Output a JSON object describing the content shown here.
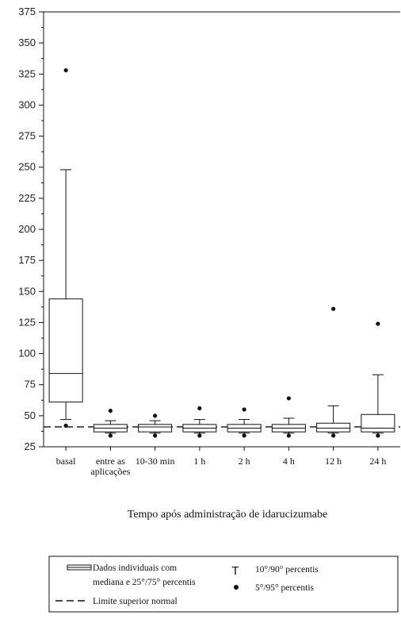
{
  "chart_data": {
    "type": "box",
    "xlabel": "Tempo após administração de idarucizumabe",
    "ylim": [
      25,
      375
    ],
    "yticks": [
      25,
      50,
      75,
      100,
      125,
      150,
      175,
      200,
      225,
      250,
      275,
      300,
      325,
      350,
      375
    ],
    "categories": [
      [
        "basal"
      ],
      [
        "entre as",
        "aplicações"
      ],
      [
        "10-30 min"
      ],
      [
        "1 h"
      ],
      [
        "2 h"
      ],
      [
        "4 h"
      ],
      [
        "12 h"
      ],
      [
        "24 h"
      ]
    ],
    "boxes": [
      {
        "p5": 42,
        "p10": 47,
        "q1": 61,
        "median": 84,
        "q3": 144,
        "p90": 248,
        "p95": 328
      },
      {
        "p5": 34,
        "p10": 36,
        "q1": 37,
        "median": 40,
        "q3": 43,
        "p90": 46,
        "p95": 54
      },
      {
        "p5": 34,
        "p10": 36,
        "q1": 37,
        "median": 41,
        "q3": 43,
        "p90": 46,
        "p95": 50
      },
      {
        "p5": 34,
        "p10": 36,
        "q1": 37,
        "median": 40,
        "q3": 43,
        "p90": 47,
        "p95": 56
      },
      {
        "p5": 34,
        "p10": 36,
        "q1": 37,
        "median": 40,
        "q3": 43,
        "p90": 47,
        "p95": 55
      },
      {
        "p5": 34,
        "p10": 36,
        "q1": 37,
        "median": 40,
        "q3": 43,
        "p90": 48,
        "p95": 64
      },
      {
        "p5": 34,
        "p10": 36,
        "q1": 37,
        "median": 40,
        "q3": 44,
        "p90": 58,
        "p95": 136
      },
      {
        "p5": 34,
        "p10": 36,
        "q1": 37,
        "median": 40,
        "q3": 51,
        "p90": 83,
        "p95": 124
      }
    ],
    "reference_line": {
      "value": 41,
      "label": "Limite superior normal",
      "style": "dashed"
    },
    "legend": {
      "placement": "bottom",
      "box": "Dados individuais com mediana e 25°/75° percentis",
      "box_line1": "Dados individuais com",
      "box_line2": "mediana e 25°/75° percentis",
      "whisker": "10°/90° percentis",
      "whisker_symbol": "T",
      "dot": "5°/95° percentis",
      "dashed": "Limite superior normal"
    }
  }
}
